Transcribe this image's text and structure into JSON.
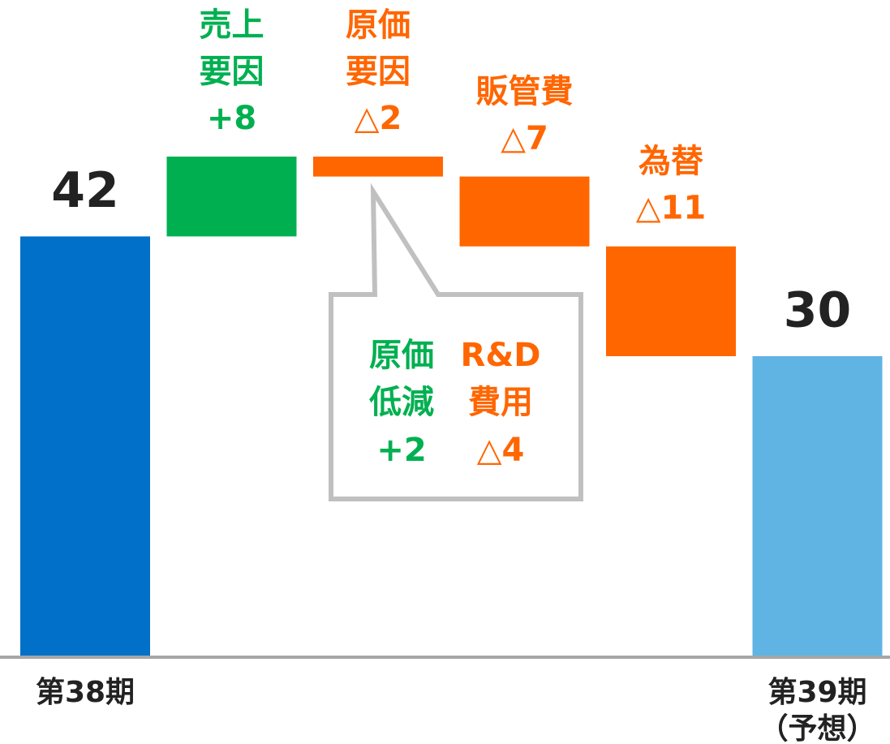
{
  "chart_data": {
    "type": "waterfall",
    "categories": [
      [
        "第38期"
      ],
      [
        "売上",
        "要因"
      ],
      [
        "原価",
        "要因"
      ],
      [
        "販管費"
      ],
      [
        "為替"
      ],
      [
        "第39期",
        "（予想）"
      ]
    ],
    "measures": [
      "absolute",
      "relative",
      "relative",
      "relative",
      "relative",
      "total"
    ],
    "values": [
      42,
      8,
      -2,
      -7,
      -11,
      30
    ],
    "value_labels": [
      "42",
      "+8",
      "△2",
      "△7",
      "△11",
      "30"
    ],
    "colors": [
      "#0070c8",
      "#00b050",
      "#ff6600",
      "#ff6600",
      "#ff6600",
      "#5fb4e4"
    ],
    "label_colors": [
      "#222222",
      "#00b050",
      "#ff6600",
      "#ff6600",
      "#ff6600",
      "#222222"
    ],
    "ylim": [
      0,
      65
    ],
    "annotations": [
      {
        "lines": [
          "原価",
          "低減"
        ],
        "value": 2,
        "value_label": "+2",
        "color": "#00b050"
      },
      {
        "lines": [
          "R&D",
          "費用"
        ],
        "value": -4,
        "value_label": "△4",
        "color": "#ff6600"
      }
    ]
  }
}
